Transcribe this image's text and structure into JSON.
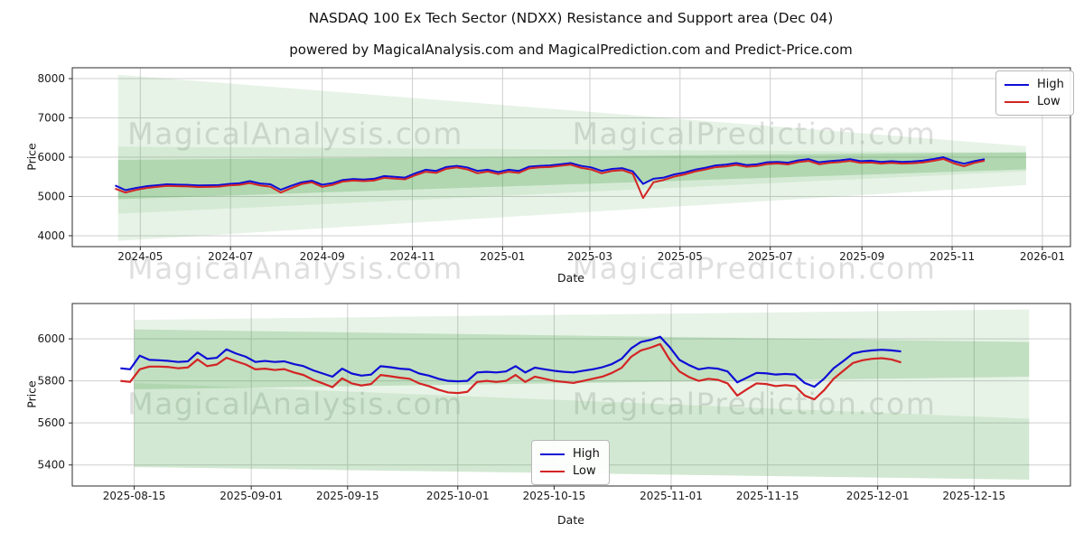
{
  "page": {
    "title": "NASDAQ 100 Ex Tech Sector (NDXX) Resistance and Support area (Dec 04)",
    "subtitle": "powered by MagicalAnalysis.com and MagicalPrediction.com and Predict-Price.com"
  },
  "watermarks": {
    "left": "MagicalAnalysis.com",
    "right": "MagicalPrediction.com"
  },
  "legend": {
    "high": "High",
    "low": "Low"
  },
  "colors": {
    "high": "#0e0ed6",
    "low": "#d42424",
    "band": "#3a9a3a",
    "grid": "#cfcfcf",
    "spine": "#2b2b2b",
    "text": "#1a1a1a",
    "watermark": "#d2d2d2"
  },
  "chart_data": [
    {
      "type": "line",
      "ylabel": "Price",
      "xlabel": "Date",
      "x_range": [
        "2024-03-16",
        "2026-01-20"
      ],
      "ylim": [
        3723,
        8277
      ],
      "y_ticks": [
        4000,
        5000,
        6000,
        7000,
        8000
      ],
      "x_ticks": [
        {
          "d": "2024-05-01",
          "label": "2024-05"
        },
        {
          "d": "2024-07-01",
          "label": "2024-07"
        },
        {
          "d": "2024-09-01",
          "label": "2024-09"
        },
        {
          "d": "2024-11-01",
          "label": "2024-11"
        },
        {
          "d": "2025-01-01",
          "label": "2025-01"
        },
        {
          "d": "2025-03-01",
          "label": "2025-03"
        },
        {
          "d": "2025-05-01",
          "label": "2025-05"
        },
        {
          "d": "2025-07-01",
          "label": "2025-07"
        },
        {
          "d": "2025-09-01",
          "label": "2025-09"
        },
        {
          "d": "2025-11-01",
          "label": "2025-11"
        },
        {
          "d": "2026-01-01",
          "label": "2026-01"
        }
      ],
      "grid": true,
      "legend_position": "upper-right",
      "bands": [
        {
          "opacity": 0.12,
          "points": [
            [
              "2024-04-16",
              8100
            ],
            [
              "2025-12-21",
              6280
            ],
            [
              "2025-12-21",
              5290
            ],
            [
              "2024-04-16",
              3870
            ]
          ]
        },
        {
          "opacity": 0.1,
          "points": [
            [
              "2024-04-16",
              6270
            ],
            [
              "2025-12-21",
              6120
            ],
            [
              "2025-12-21",
              5640
            ],
            [
              "2024-04-16",
              4560
            ]
          ]
        },
        {
          "opacity": 0.24,
          "points": [
            [
              "2024-04-16",
              5930
            ],
            [
              "2025-12-21",
              6120
            ],
            [
              "2025-12-21",
              5690
            ],
            [
              "2024-04-16",
              4930
            ]
          ]
        }
      ],
      "series": [
        {
          "name": "High",
          "color": "high",
          "width": 2,
          "start": "2024-04-14",
          "step_days": 7,
          "values": [
            5280,
            5160,
            5215,
            5260,
            5285,
            5310,
            5300,
            5295,
            5280,
            5285,
            5290,
            5320,
            5335,
            5390,
            5330,
            5310,
            5170,
            5270,
            5360,
            5400,
            5300,
            5340,
            5420,
            5445,
            5430,
            5450,
            5520,
            5500,
            5480,
            5590,
            5680,
            5650,
            5750,
            5780,
            5740,
            5650,
            5680,
            5620,
            5680,
            5650,
            5760,
            5780,
            5790,
            5820,
            5850,
            5780,
            5740,
            5650,
            5700,
            5720,
            5640,
            5320,
            5450,
            5480,
            5560,
            5610,
            5680,
            5730,
            5790,
            5810,
            5850,
            5800,
            5820,
            5870,
            5880,
            5860,
            5920,
            5950,
            5870,
            5900,
            5920,
            5950,
            5900,
            5910,
            5880,
            5900,
            5880,
            5890,
            5910,
            5950,
            6000,
            5900,
            5835,
            5900,
            5950
          ]
        },
        {
          "name": "Low",
          "color": "low",
          "width": 2,
          "start": "2024-04-14",
          "step_days": 7,
          "values": [
            5200,
            5100,
            5165,
            5215,
            5245,
            5270,
            5260,
            5255,
            5240,
            5245,
            5250,
            5280,
            5295,
            5340,
            5280,
            5250,
            5100,
            5210,
            5315,
            5360,
            5245,
            5295,
            5380,
            5405,
            5390,
            5405,
            5475,
            5455,
            5435,
            5540,
            5630,
            5600,
            5705,
            5740,
            5690,
            5590,
            5635,
            5570,
            5630,
            5600,
            5715,
            5740,
            5750,
            5780,
            5810,
            5730,
            5685,
            5590,
            5650,
            5670,
            5580,
            4960,
            5360,
            5420,
            5505,
            5560,
            5635,
            5685,
            5745,
            5765,
            5805,
            5755,
            5775,
            5825,
            5840,
            5815,
            5875,
            5905,
            5820,
            5855,
            5875,
            5905,
            5855,
            5865,
            5835,
            5855,
            5835,
            5845,
            5865,
            5905,
            5955,
            5845,
            5770,
            5855,
            5910
          ]
        }
      ]
    },
    {
      "type": "line",
      "ylabel": "Price",
      "xlabel": "Date",
      "x_range": [
        "2025-08-06",
        "2025-12-29"
      ],
      "ylim": [
        5300,
        6168
      ],
      "y_ticks": [
        5400,
        5600,
        5800,
        6000
      ],
      "x_ticks": [
        {
          "d": "2025-08-15",
          "label": "2025-08-15"
        },
        {
          "d": "2025-09-01",
          "label": "2025-09-01"
        },
        {
          "d": "2025-09-15",
          "label": "2025-09-15"
        },
        {
          "d": "2025-10-01",
          "label": "2025-10-01"
        },
        {
          "d": "2025-10-15",
          "label": "2025-10-15"
        },
        {
          "d": "2025-11-01",
          "label": "2025-11-01"
        },
        {
          "d": "2025-11-15",
          "label": "2025-11-15"
        },
        {
          "d": "2025-12-01",
          "label": "2025-12-01"
        },
        {
          "d": "2025-12-15",
          "label": "2025-12-15"
        }
      ],
      "grid": true,
      "legend_position": "lower-center",
      "bands": [
        {
          "opacity": 0.12,
          "points": [
            [
              "2025-08-15",
              6090
            ],
            [
              "2025-12-23",
              6140
            ],
            [
              "2025-12-23",
              5330
            ],
            [
              "2025-08-15",
              5390
            ]
          ]
        },
        {
          "opacity": 0.22,
          "points": [
            [
              "2025-08-15",
              6045
            ],
            [
              "2025-12-23",
              5985
            ],
            [
              "2025-12-23",
              5820
            ],
            [
              "2025-08-15",
              5760
            ]
          ]
        },
        {
          "opacity": 0.12,
          "points": [
            [
              "2025-08-15",
              5790
            ],
            [
              "2025-12-23",
              5620
            ],
            [
              "2025-12-23",
              5330
            ],
            [
              "2025-08-15",
              5390
            ]
          ]
        }
      ],
      "series": [
        {
          "name": "High",
          "color": "high",
          "width": 2.2,
          "start": "2025-08-13",
          "step_days": 1.4,
          "values": [
            5860,
            5855,
            5920,
            5900,
            5898,
            5895,
            5890,
            5893,
            5935,
            5905,
            5910,
            5950,
            5930,
            5915,
            5890,
            5895,
            5890,
            5893,
            5880,
            5870,
            5850,
            5835,
            5820,
            5858,
            5835,
            5825,
            5830,
            5870,
            5865,
            5858,
            5855,
            5835,
            5825,
            5810,
            5800,
            5798,
            5800,
            5840,
            5843,
            5840,
            5845,
            5870,
            5840,
            5863,
            5855,
            5848,
            5843,
            5840,
            5848,
            5855,
            5865,
            5880,
            5905,
            5955,
            5985,
            5995,
            6010,
            5960,
            5900,
            5875,
            5855,
            5862,
            5858,
            5845,
            5793,
            5815,
            5838,
            5836,
            5830,
            5833,
            5830,
            5790,
            5772,
            5810,
            5860,
            5894,
            5930,
            5940,
            5945,
            5948,
            5945,
            5940
          ]
        },
        {
          "name": "Low",
          "color": "low",
          "width": 2.2,
          "start": "2025-08-13",
          "step_days": 1.4,
          "values": [
            5800,
            5795,
            5855,
            5868,
            5868,
            5866,
            5860,
            5864,
            5902,
            5870,
            5878,
            5910,
            5893,
            5878,
            5855,
            5858,
            5852,
            5856,
            5840,
            5828,
            5805,
            5788,
            5770,
            5812,
            5788,
            5778,
            5785,
            5828,
            5822,
            5815,
            5810,
            5788,
            5775,
            5758,
            5745,
            5742,
            5748,
            5795,
            5800,
            5795,
            5800,
            5828,
            5795,
            5820,
            5810,
            5800,
            5795,
            5790,
            5800,
            5810,
            5820,
            5838,
            5862,
            5915,
            5945,
            5958,
            5975,
            5900,
            5845,
            5818,
            5800,
            5810,
            5805,
            5788,
            5730,
            5760,
            5788,
            5785,
            5775,
            5780,
            5775,
            5730,
            5712,
            5755,
            5810,
            5848,
            5885,
            5898,
            5905,
            5908,
            5902,
            5888
          ]
        }
      ]
    }
  ]
}
